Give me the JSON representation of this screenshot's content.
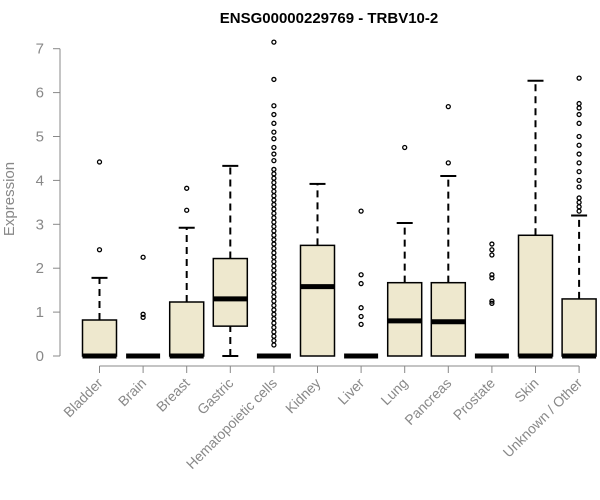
{
  "chart_data": {
    "type": "box",
    "title": "ENSG00000229769 - TRBV10-2",
    "xlabel": "",
    "ylabel": "Expression",
    "ylim": [
      0,
      7
    ],
    "yticks": [
      0,
      1,
      2,
      3,
      4,
      5,
      6,
      7
    ],
    "categories": [
      "Bladder",
      "Brain",
      "Breast",
      "Gastric",
      "Hematopoietic cells",
      "Kidney",
      "Liver",
      "Lung",
      "Pancreas",
      "Prostate",
      "Skin",
      "Unknown / Other"
    ],
    "boxes": [
      {
        "min": 0,
        "q1": 0,
        "median": 0,
        "q3": 0.82,
        "max": 1.78,
        "outliers": [
          2.42,
          4.42
        ]
      },
      {
        "min": 0,
        "q1": 0,
        "median": 0,
        "q3": 0,
        "max": 0,
        "outliers": [
          0.88,
          0.95,
          2.25
        ]
      },
      {
        "min": 0,
        "q1": 0,
        "median": 0,
        "q3": 1.23,
        "max": 2.92,
        "outliers": [
          3.32,
          3.82
        ]
      },
      {
        "min": 0,
        "q1": 0.68,
        "median": 1.3,
        "q3": 2.22,
        "max": 4.33,
        "outliers": []
      },
      {
        "min": 0,
        "q1": 0,
        "median": 0,
        "q3": 0,
        "max": 0,
        "outliers": [
          0.25,
          0.35,
          0.45,
          0.55,
          0.65,
          0.75,
          0.85,
          0.95,
          1.05,
          1.15,
          1.25,
          1.35,
          1.45,
          1.55,
          1.65,
          1.75,
          1.85,
          1.95,
          2.05,
          2.15,
          2.25,
          2.35,
          2.45,
          2.55,
          2.65,
          2.75,
          2.85,
          2.95,
          3.05,
          3.15,
          3.25,
          3.35,
          3.45,
          3.55,
          3.65,
          3.75,
          3.85,
          3.95,
          4.05,
          4.15,
          4.25,
          4.45,
          4.6,
          4.75,
          4.95,
          5.1,
          5.3,
          5.5,
          5.7,
          6.3,
          7.15
        ]
      },
      {
        "min": 0,
        "q1": 0,
        "median": 1.58,
        "q3": 2.52,
        "max": 3.92,
        "outliers": []
      },
      {
        "min": 0,
        "q1": 0,
        "median": 0,
        "q3": 0,
        "max": 0,
        "outliers": [
          0.72,
          0.9,
          1.1,
          1.65,
          1.85,
          3.3
        ]
      },
      {
        "min": 0,
        "q1": 0,
        "median": 0.8,
        "q3": 1.67,
        "max": 3.03,
        "outliers": [
          4.75
        ]
      },
      {
        "min": 0,
        "q1": 0,
        "median": 0.78,
        "q3": 1.67,
        "max": 4.1,
        "outliers": [
          4.4,
          5.68
        ]
      },
      {
        "min": 0,
        "q1": 0,
        "median": 0,
        "q3": 0,
        "max": 0,
        "outliers": [
          1.2,
          1.25,
          1.78,
          1.85,
          2.3,
          2.42,
          2.55
        ]
      },
      {
        "min": 0,
        "q1": 0,
        "median": 0,
        "q3": 2.75,
        "max": 6.27,
        "outliers": []
      },
      {
        "min": 0,
        "q1": 0,
        "median": 0,
        "q3": 1.3,
        "max": 3.2,
        "outliers": [
          3.3,
          3.4,
          3.5,
          3.6,
          3.85,
          4.0,
          4.2,
          4.4,
          4.6,
          4.8,
          5.0,
          5.3,
          5.5,
          5.65,
          5.75,
          6.33
        ]
      }
    ],
    "colors": {
      "box_fill": "#EEE8CE",
      "box_stroke": "#000000",
      "axis": "#888888",
      "text": "#888888",
      "title": "#000000"
    },
    "grid": false,
    "legend": "none"
  }
}
